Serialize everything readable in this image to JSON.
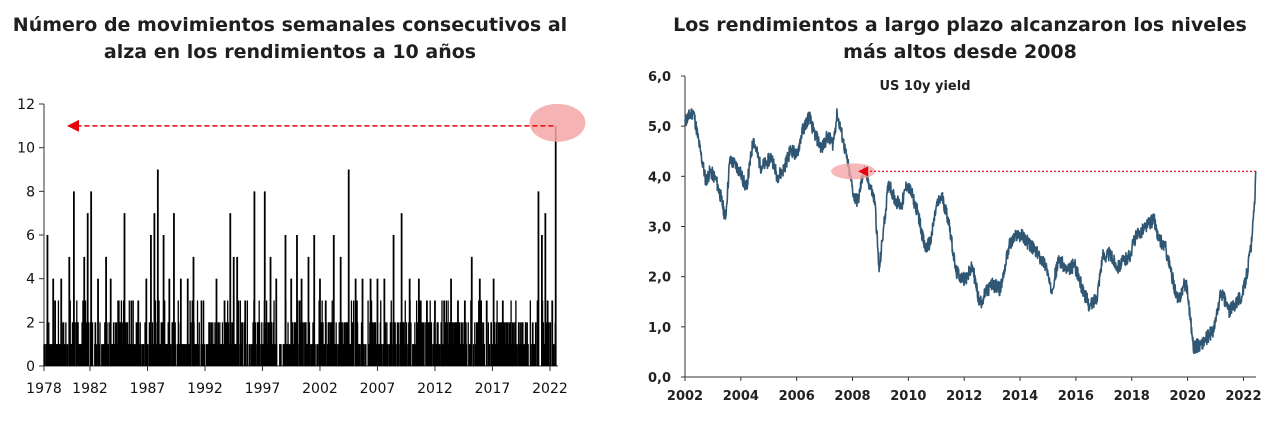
{
  "colors": {
    "left_series": "#000000",
    "right_series": "#2f5672",
    "arrow": "#e8000b",
    "highlight": "#f4a6a6"
  },
  "chart_data": [
    {
      "type": "bar",
      "title": "Número de movimientos semanales consecutivos al alza en los rendimientos a 10 años",
      "xlabel": "",
      "ylabel": "",
      "x_ticks": [
        "1978",
        "1982",
        "1987",
        "1992",
        "1997",
        "2002",
        "2007",
        "2012",
        "2017",
        "2022"
      ],
      "x_range": [
        1978,
        2022.7
      ],
      "y_ticks": [
        "0",
        "2",
        "4",
        "6",
        "8",
        "10",
        "12"
      ],
      "ylim": [
        0,
        12
      ],
      "grid": false,
      "legend": "none",
      "peaks": [
        {
          "x": 1978.3,
          "value": 6
        },
        {
          "x": 1978.8,
          "value": 4
        },
        {
          "x": 1979.5,
          "value": 4
        },
        {
          "x": 1980.2,
          "value": 5
        },
        {
          "x": 1980.6,
          "value": 8
        },
        {
          "x": 1981.5,
          "value": 5
        },
        {
          "x": 1981.8,
          "value": 7
        },
        {
          "x": 1982.1,
          "value": 8
        },
        {
          "x": 1982.7,
          "value": 4
        },
        {
          "x": 1983.4,
          "value": 5
        },
        {
          "x": 1983.8,
          "value": 4
        },
        {
          "x": 1984.5,
          "value": 3
        },
        {
          "x": 1985.0,
          "value": 7
        },
        {
          "x": 1985.6,
          "value": 3
        },
        {
          "x": 1986.2,
          "value": 3
        },
        {
          "x": 1986.9,
          "value": 4
        },
        {
          "x": 1987.3,
          "value": 6
        },
        {
          "x": 1987.6,
          "value": 7
        },
        {
          "x": 1987.9,
          "value": 9
        },
        {
          "x": 1988.4,
          "value": 6
        },
        {
          "x": 1988.9,
          "value": 4
        },
        {
          "x": 1989.3,
          "value": 7
        },
        {
          "x": 1989.9,
          "value": 4
        },
        {
          "x": 1990.5,
          "value": 4
        },
        {
          "x": 1991.0,
          "value": 5
        },
        {
          "x": 1991.7,
          "value": 3
        },
        {
          "x": 1992.4,
          "value": 2
        },
        {
          "x": 1993.0,
          "value": 4
        },
        {
          "x": 1993.7,
          "value": 3
        },
        {
          "x": 1994.2,
          "value": 7
        },
        {
          "x": 1994.5,
          "value": 5
        },
        {
          "x": 1994.8,
          "value": 5
        },
        {
          "x": 1995.5,
          "value": 3
        },
        {
          "x": 1996.3,
          "value": 8
        },
        {
          "x": 1996.6,
          "value": 2
        },
        {
          "x": 1997.2,
          "value": 8
        },
        {
          "x": 1997.7,
          "value": 5
        },
        {
          "x": 1998.2,
          "value": 4
        },
        {
          "x": 1999.0,
          "value": 6
        },
        {
          "x": 1999.5,
          "value": 4
        },
        {
          "x": 2000.0,
          "value": 6
        },
        {
          "x": 2000.4,
          "value": 4
        },
        {
          "x": 2001.0,
          "value": 5
        },
        {
          "x": 2001.5,
          "value": 6
        },
        {
          "x": 2002.0,
          "value": 4
        },
        {
          "x": 2002.5,
          "value": 3
        },
        {
          "x": 2003.2,
          "value": 6
        },
        {
          "x": 2003.8,
          "value": 5
        },
        {
          "x": 2004.5,
          "value": 9
        },
        {
          "x": 2005.1,
          "value": 4
        },
        {
          "x": 2005.7,
          "value": 4
        },
        {
          "x": 2006.4,
          "value": 4
        },
        {
          "x": 2007.0,
          "value": 4
        },
        {
          "x": 2007.6,
          "value": 4
        },
        {
          "x": 2008.4,
          "value": 6
        },
        {
          "x": 2009.1,
          "value": 7
        },
        {
          "x": 2009.8,
          "value": 4
        },
        {
          "x": 2010.6,
          "value": 4
        },
        {
          "x": 2011.3,
          "value": 3
        },
        {
          "x": 2012.0,
          "value": 3
        },
        {
          "x": 2012.8,
          "value": 3
        },
        {
          "x": 2013.4,
          "value": 4
        },
        {
          "x": 2014.0,
          "value": 3
        },
        {
          "x": 2014.6,
          "value": 3
        },
        {
          "x": 2015.2,
          "value": 5
        },
        {
          "x": 2015.9,
          "value": 4
        },
        {
          "x": 2016.5,
          "value": 3
        },
        {
          "x": 2017.1,
          "value": 4
        },
        {
          "x": 2017.9,
          "value": 3
        },
        {
          "x": 2018.5,
          "value": 2
        },
        {
          "x": 2019.3,
          "value": 2
        },
        {
          "x": 2019.9,
          "value": 2
        },
        {
          "x": 2020.5,
          "value": 2
        },
        {
          "x": 2021.0,
          "value": 8
        },
        {
          "x": 2021.3,
          "value": 6
        },
        {
          "x": 2021.6,
          "value": 7
        },
        {
          "x": 2021.8,
          "value": 3
        },
        {
          "x": 2022.2,
          "value": 3
        },
        {
          "x": 2022.5,
          "value": 11
        }
      ],
      "annotation": {
        "type": "arrow",
        "value": 11,
        "x_from": 2022.3,
        "x_to": 1980.0
      }
    },
    {
      "type": "line",
      "title": "Los rendimientos a largo plazo alcanzaron los niveles más altos desde 2008",
      "subtitle": "US 10y yield",
      "xlabel": "",
      "ylabel": "",
      "x_ticks": [
        "2002",
        "2004",
        "2006",
        "2008",
        "2010",
        "2012",
        "2014",
        "2016",
        "2018",
        "2020",
        "2022"
      ],
      "x_range": [
        2002,
        2022.45
      ],
      "y_ticks": [
        "0,0",
        "1,0",
        "2,0",
        "3,0",
        "4,0",
        "5,0",
        "6,0"
      ],
      "ylim": [
        0,
        6
      ],
      "grid": false,
      "legend": "none",
      "series": [
        {
          "name": "US 10y yield",
          "points": [
            [
              2002.0,
              5.1
            ],
            [
              2002.3,
              5.3
            ],
            [
              2002.55,
              4.5
            ],
            [
              2002.75,
              3.9
            ],
            [
              2002.9,
              4.1
            ],
            [
              2003.1,
              3.95
            ],
            [
              2003.3,
              3.55
            ],
            [
              2003.45,
              3.15
            ],
            [
              2003.6,
              4.3
            ],
            [
              2003.8,
              4.25
            ],
            [
              2004.0,
              4.05
            ],
            [
              2004.2,
              3.75
            ],
            [
              2004.45,
              4.75
            ],
            [
              2004.7,
              4.2
            ],
            [
              2004.9,
              4.25
            ],
            [
              2005.1,
              4.4
            ],
            [
              2005.3,
              4.0
            ],
            [
              2005.5,
              4.1
            ],
            [
              2005.8,
              4.55
            ],
            [
              2006.0,
              4.4
            ],
            [
              2006.2,
              4.9
            ],
            [
              2006.45,
              5.2
            ],
            [
              2006.6,
              4.9
            ],
            [
              2006.9,
              4.55
            ],
            [
              2007.1,
              4.8
            ],
            [
              2007.3,
              4.65
            ],
            [
              2007.45,
              5.25
            ],
            [
              2007.65,
              4.75
            ],
            [
              2007.9,
              4.05
            ],
            [
              2008.05,
              3.6
            ],
            [
              2008.2,
              3.5
            ],
            [
              2008.4,
              4.15
            ],
            [
              2008.6,
              3.85
            ],
            [
              2008.8,
              3.5
            ],
            [
              2008.95,
              2.1
            ],
            [
              2009.1,
              2.9
            ],
            [
              2009.3,
              3.9
            ],
            [
              2009.5,
              3.55
            ],
            [
              2009.75,
              3.4
            ],
            [
              2009.95,
              3.85
            ],
            [
              2010.15,
              3.6
            ],
            [
              2010.35,
              3.25
            ],
            [
              2010.6,
              2.55
            ],
            [
              2010.8,
              2.7
            ],
            [
              2011.0,
              3.4
            ],
            [
              2011.2,
              3.6
            ],
            [
              2011.45,
              3.1
            ],
            [
              2011.7,
              2.1
            ],
            [
              2011.95,
              1.95
            ],
            [
              2012.1,
              2.0
            ],
            [
              2012.3,
              2.2
            ],
            [
              2012.55,
              1.45
            ],
            [
              2012.8,
              1.7
            ],
            [
              2013.0,
              1.85
            ],
            [
              2013.3,
              1.75
            ],
            [
              2013.6,
              2.6
            ],
            [
              2013.9,
              2.85
            ],
            [
              2014.1,
              2.8
            ],
            [
              2014.4,
              2.6
            ],
            [
              2014.7,
              2.4
            ],
            [
              2014.95,
              2.2
            ],
            [
              2015.1,
              1.7
            ],
            [
              2015.4,
              2.35
            ],
            [
              2015.7,
              2.1
            ],
            [
              2015.95,
              2.25
            ],
            [
              2016.2,
              1.8
            ],
            [
              2016.5,
              1.4
            ],
            [
              2016.75,
              1.6
            ],
            [
              2016.95,
              2.4
            ],
            [
              2017.2,
              2.45
            ],
            [
              2017.5,
              2.2
            ],
            [
              2017.8,
              2.35
            ],
            [
              2017.95,
              2.45
            ],
            [
              2018.1,
              2.75
            ],
            [
              2018.4,
              2.95
            ],
            [
              2018.8,
              3.15
            ],
            [
              2018.95,
              2.75
            ],
            [
              2019.2,
              2.6
            ],
            [
              2019.4,
              2.1
            ],
            [
              2019.65,
              1.5
            ],
            [
              2019.85,
              1.8
            ],
            [
              2019.95,
              1.9
            ],
            [
              2020.1,
              1.2
            ],
            [
              2020.2,
              0.6
            ],
            [
              2020.5,
              0.65
            ],
            [
              2020.8,
              0.85
            ],
            [
              2020.95,
              0.95
            ],
            [
              2021.2,
              1.7
            ],
            [
              2021.5,
              1.3
            ],
            [
              2021.8,
              1.55
            ],
            [
              2021.95,
              1.6
            ],
            [
              2022.1,
              2.0
            ],
            [
              2022.3,
              2.7
            ],
            [
              2022.38,
              3.3
            ],
            [
              2022.45,
              4.1
            ]
          ]
        }
      ],
      "annotation": {
        "type": "arrow",
        "value": 4.1,
        "x_from": 2022.45,
        "x_to": 2008.2
      }
    }
  ]
}
